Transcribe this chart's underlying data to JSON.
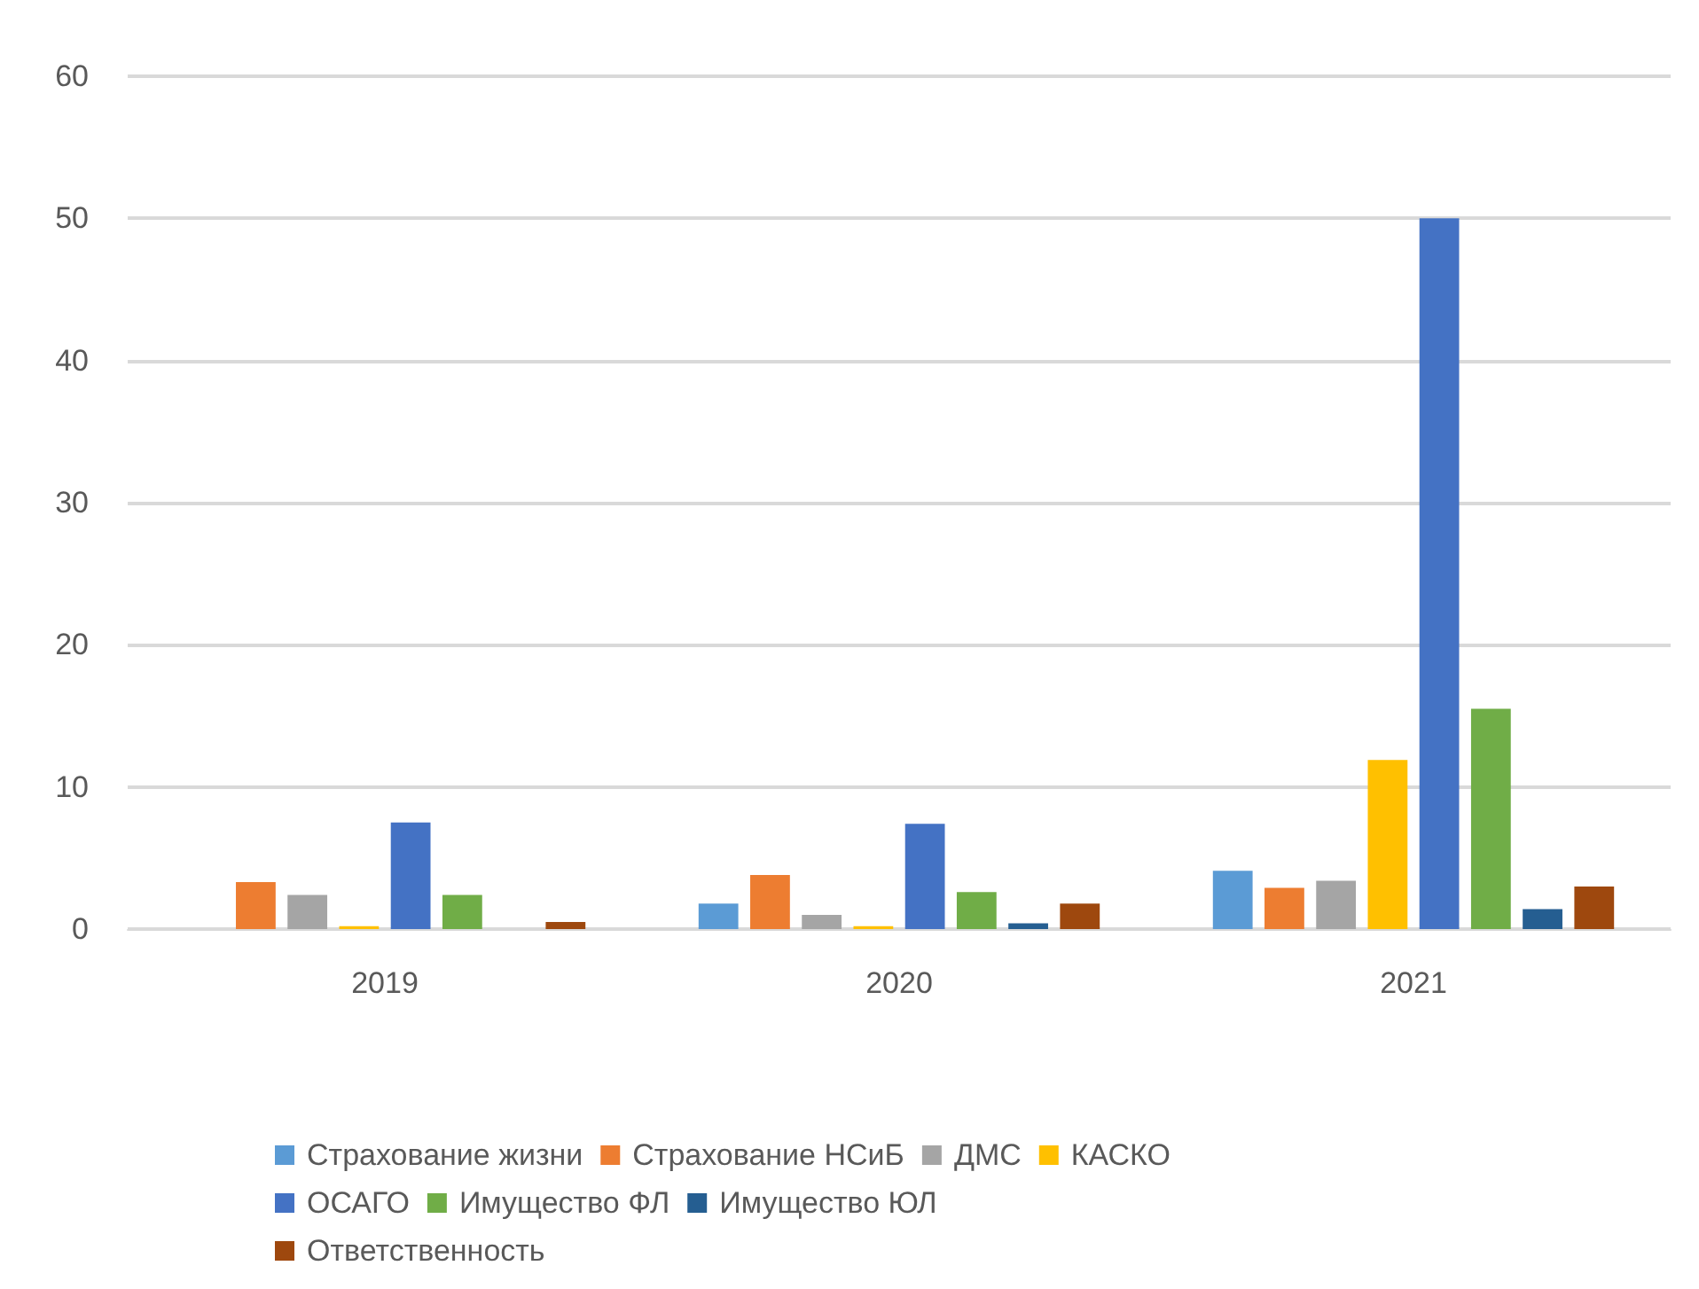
{
  "chart_data": {
    "type": "bar",
    "categories": [
      "2019",
      "2020",
      "2021"
    ],
    "series": [
      {
        "name": "Страхование жизни",
        "color": "#5b9bd5",
        "values": [
          null,
          1.8,
          4.1
        ]
      },
      {
        "name": "Страхование НСиБ",
        "color": "#ed7d31",
        "values": [
          3.3,
          3.8,
          2.9
        ]
      },
      {
        "name": "ДМС",
        "color": "#a5a5a5",
        "values": [
          2.4,
          1.0,
          3.4
        ]
      },
      {
        "name": "КАСКО",
        "color": "#ffc000",
        "values": [
          0.2,
          0.2,
          11.9
        ]
      },
      {
        "name": "ОСАГО",
        "color": "#4472c4",
        "values": [
          7.5,
          7.4,
          50
        ]
      },
      {
        "name": "Имущество ФЛ",
        "color": "#70ad47",
        "values": [
          2.4,
          2.6,
          15.5
        ]
      },
      {
        "name": "Имущество ЮЛ",
        "color": "#255e91",
        "values": [
          null,
          0.4,
          1.4
        ]
      },
      {
        "name": "Ответственность",
        "color": "#9e480e",
        "values": [
          0.5,
          1.8,
          3.0
        ]
      }
    ],
    "ylim": [
      0,
      60
    ],
    "yticks": [
      0,
      10,
      20,
      30,
      40,
      50,
      60
    ],
    "grid": "y",
    "legend": "bottom"
  }
}
